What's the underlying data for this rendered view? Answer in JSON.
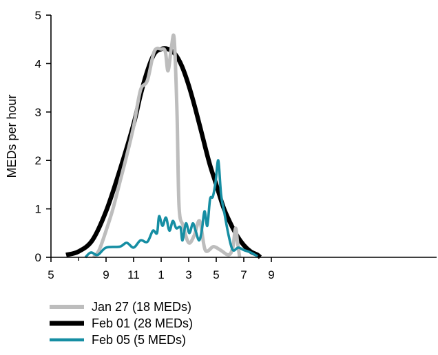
{
  "chart_data": {
    "type": "line",
    "ylabel": "MEDs per hour",
    "xlabel": "",
    "title": "",
    "xlim": [
      5,
      33
    ],
    "ylim": [
      0,
      5
    ],
    "x_ticks": [
      {
        "value": 5,
        "label": "5"
      },
      {
        "value": 9,
        "label": "9"
      },
      {
        "value": 11,
        "label": "11"
      },
      {
        "value": 13,
        "label": "1"
      },
      {
        "value": 15,
        "label": "3"
      },
      {
        "value": 17,
        "label": "5"
      },
      {
        "value": 19,
        "label": "7"
      },
      {
        "value": 21,
        "label": "9"
      }
    ],
    "x_minor_ticks": [
      7
    ],
    "y_ticks": [
      {
        "value": 0,
        "label": "0"
      },
      {
        "value": 1,
        "label": "1"
      },
      {
        "value": 2,
        "label": "2"
      },
      {
        "value": 3,
        "label": "3"
      },
      {
        "value": 4,
        "label": "4"
      },
      {
        "value": 5,
        "label": "5"
      }
    ],
    "legend_position": "bottom-left",
    "series": [
      {
        "name": "Jan 27 (18 MEDs)",
        "color": "#bdbdbd",
        "points": [
          [
            8.1,
            0.0
          ],
          [
            8.5,
            0.15
          ],
          [
            9.0,
            0.55
          ],
          [
            9.5,
            1.0
          ],
          [
            10.0,
            1.55
          ],
          [
            10.5,
            2.1
          ],
          [
            11.0,
            2.7
          ],
          [
            11.5,
            3.45
          ],
          [
            12.0,
            3.65
          ],
          [
            12.5,
            4.25
          ],
          [
            13.0,
            4.3
          ],
          [
            13.3,
            4.25
          ],
          [
            13.5,
            3.85
          ],
          [
            13.75,
            4.35
          ],
          [
            13.95,
            4.5
          ],
          [
            14.15,
            3.0
          ],
          [
            14.3,
            1.05
          ],
          [
            14.6,
            0.65
          ],
          [
            15.0,
            0.3
          ],
          [
            15.4,
            0.45
          ],
          [
            15.8,
            0.75
          ],
          [
            16.2,
            0.15
          ],
          [
            16.8,
            0.22
          ],
          [
            17.3,
            0.15
          ],
          [
            17.9,
            0.05
          ],
          [
            18.2,
            0.2
          ],
          [
            18.4,
            0.6
          ],
          [
            18.55,
            0.3
          ],
          [
            18.7,
            0.0
          ]
        ]
      },
      {
        "name": "Feb 01 (28 MEDs)",
        "color": "#000000",
        "points": [
          [
            6.1,
            0.05
          ],
          [
            7.0,
            0.12
          ],
          [
            8.0,
            0.35
          ],
          [
            9.0,
            0.95
          ],
          [
            10.0,
            1.8
          ],
          [
            11.0,
            2.75
          ],
          [
            11.5,
            3.35
          ],
          [
            12.0,
            3.85
          ],
          [
            12.5,
            4.2
          ],
          [
            13.0,
            4.3
          ],
          [
            13.5,
            4.3
          ],
          [
            14.0,
            4.2
          ],
          [
            14.5,
            3.95
          ],
          [
            15.0,
            3.55
          ],
          [
            15.5,
            3.05
          ],
          [
            16.0,
            2.5
          ],
          [
            16.5,
            1.95
          ],
          [
            17.0,
            1.5
          ],
          [
            17.5,
            1.05
          ],
          [
            18.0,
            0.72
          ],
          [
            18.5,
            0.45
          ],
          [
            19.0,
            0.25
          ],
          [
            19.5,
            0.12
          ],
          [
            20.0,
            0.05
          ],
          [
            20.2,
            0.0
          ]
        ]
      },
      {
        "name": "Feb 05 (5 MEDs)",
        "color": "#168ea3",
        "points": [
          [
            7.5,
            0.0
          ],
          [
            7.9,
            0.1
          ],
          [
            8.4,
            0.05
          ],
          [
            9.0,
            0.2
          ],
          [
            10.0,
            0.22
          ],
          [
            10.5,
            0.3
          ],
          [
            11.0,
            0.2
          ],
          [
            11.5,
            0.35
          ],
          [
            12.0,
            0.32
          ],
          [
            12.4,
            0.55
          ],
          [
            12.7,
            0.5
          ],
          [
            12.85,
            0.85
          ],
          [
            13.1,
            0.65
          ],
          [
            13.35,
            0.82
          ],
          [
            13.6,
            0.55
          ],
          [
            13.85,
            0.75
          ],
          [
            14.1,
            0.6
          ],
          [
            14.4,
            0.62
          ],
          [
            14.55,
            0.35
          ],
          [
            14.8,
            0.7
          ],
          [
            15.05,
            0.5
          ],
          [
            15.3,
            0.7
          ],
          [
            15.5,
            0.55
          ],
          [
            15.75,
            0.35
          ],
          [
            15.95,
            0.55
          ],
          [
            16.15,
            0.95
          ],
          [
            16.35,
            0.65
          ],
          [
            16.55,
            1.2
          ],
          [
            16.75,
            1.25
          ],
          [
            16.95,
            1.55
          ],
          [
            17.15,
            2.0
          ],
          [
            17.35,
            1.3
          ],
          [
            17.6,
            0.9
          ],
          [
            17.9,
            0.45
          ],
          [
            18.2,
            0.15
          ],
          [
            18.6,
            0.2
          ],
          [
            19.0,
            0.15
          ],
          [
            19.5,
            0.1
          ],
          [
            20.0,
            0.02
          ]
        ]
      }
    ]
  }
}
